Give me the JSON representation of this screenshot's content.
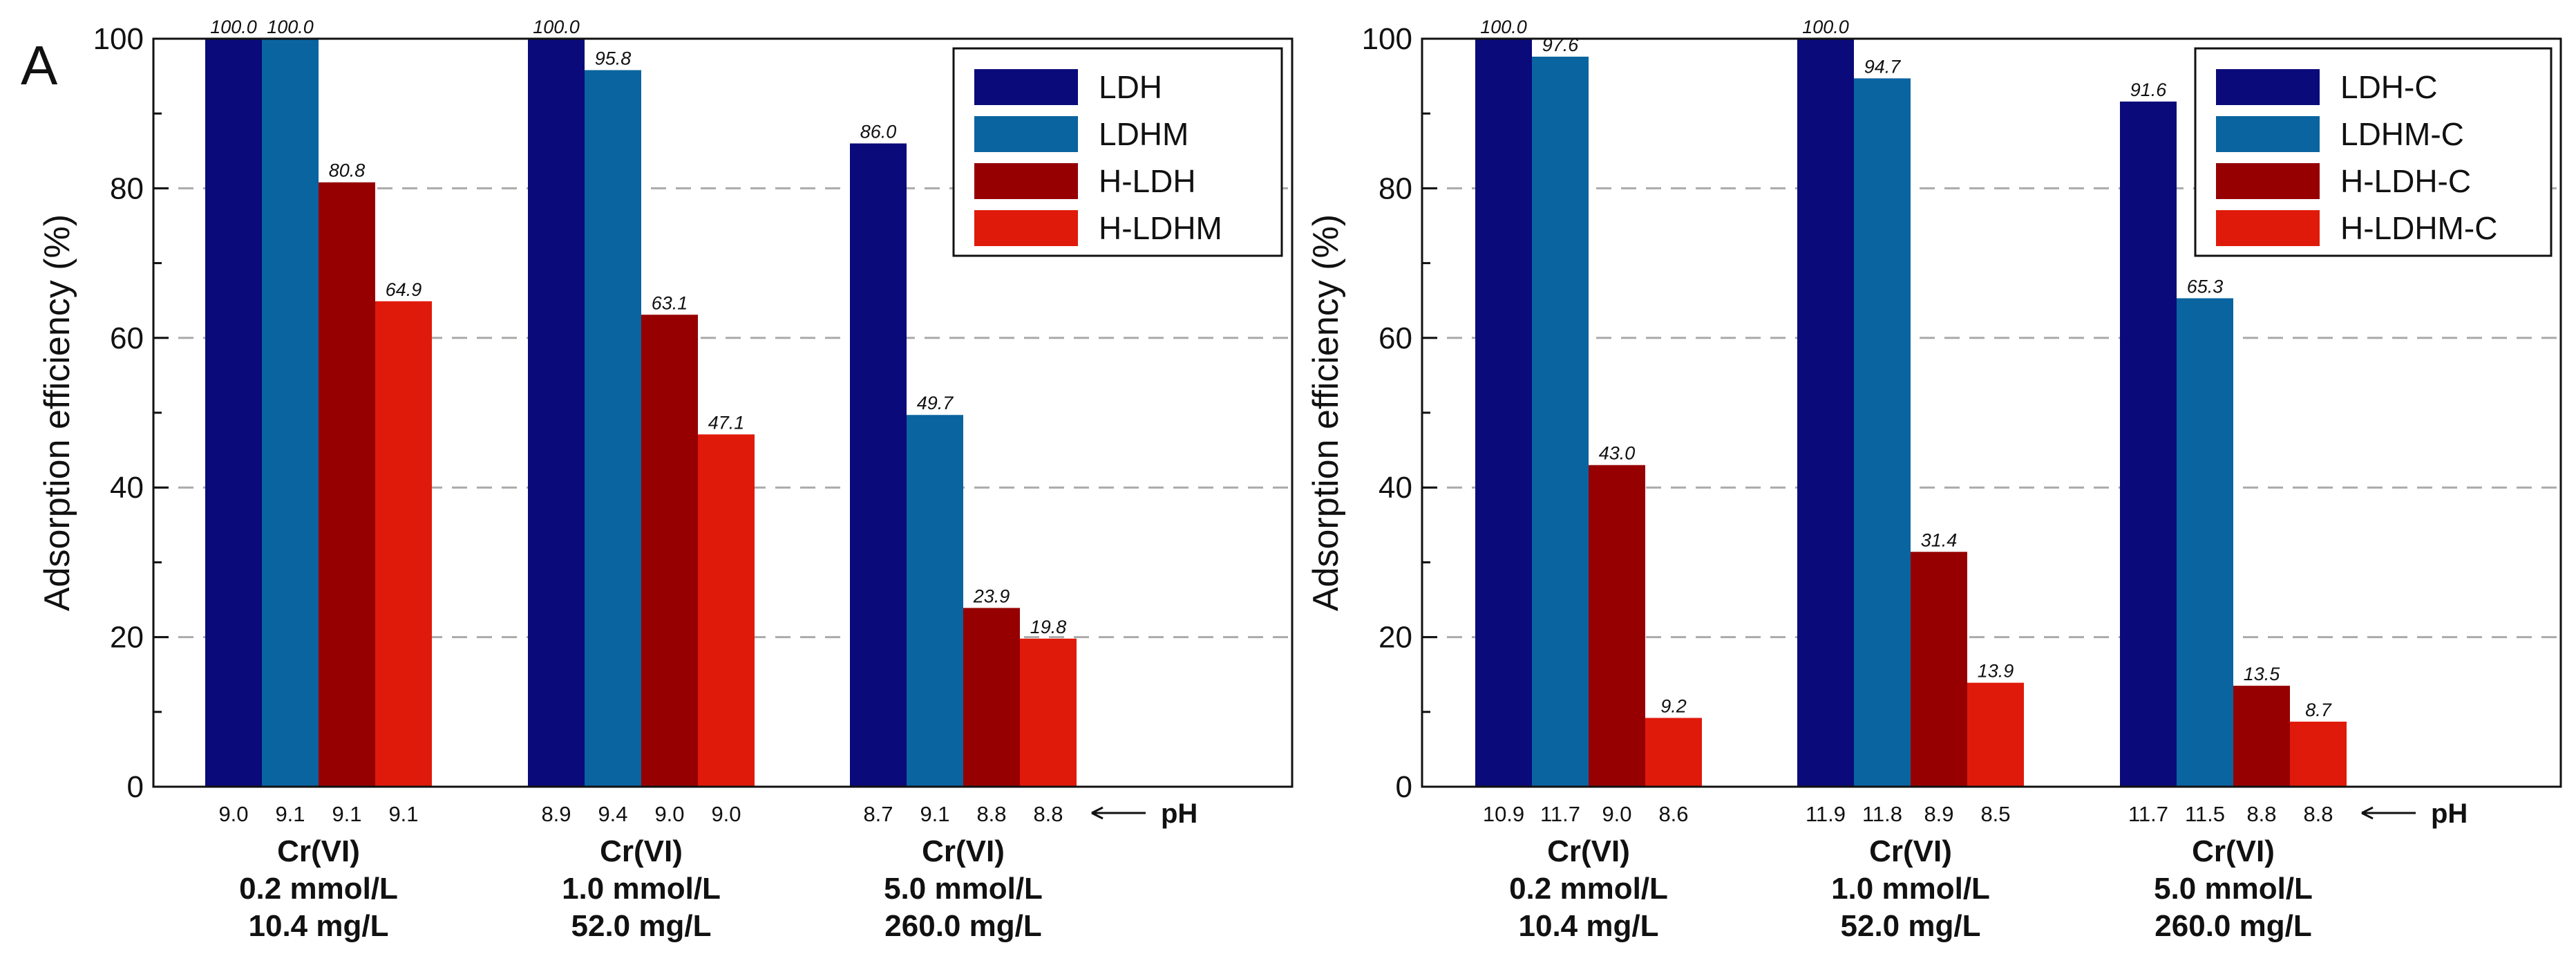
{
  "panel_letter": "A",
  "ph_marker": "pH",
  "chart_data": [
    {
      "type": "bar",
      "ylabel": "Adsorption efficiency (%)",
      "ylim": [
        0,
        100
      ],
      "yticks": [
        0,
        20,
        40,
        60,
        80,
        100
      ],
      "grid": "dashed horizontal",
      "legend_position": "top-right",
      "categories": [
        [
          "Cr(VI)",
          "0.2 mmol/L",
          "10.4 mg/L"
        ],
        [
          "Cr(VI)",
          "1.0 mmol/L",
          "52.0 mg/L"
        ],
        [
          "Cr(VI)",
          "5.0 mmol/L",
          "260.0 mg/L"
        ]
      ],
      "series": [
        {
          "name": "LDH",
          "color": "#0a0a7a",
          "values": [
            100.0,
            100.0,
            86.0
          ],
          "labels": [
            "100.0",
            "100.0",
            "86.0"
          ],
          "ph": [
            "9.0",
            "8.9",
            "8.7"
          ]
        },
        {
          "name": "LDHM",
          "color": "#0a64a0",
          "values": [
            100.0,
            95.8,
            49.7
          ],
          "labels": [
            "100.0",
            "95.8",
            "49.7"
          ],
          "ph": [
            "9.1",
            "9.4",
            "9.1"
          ]
        },
        {
          "name": "H-LDH",
          "color": "#960000",
          "values": [
            80.8,
            63.1,
            23.9
          ],
          "labels": [
            "80.8",
            "63.1",
            "23.9"
          ],
          "ph": [
            "9.1",
            "9.0",
            "8.8"
          ]
        },
        {
          "name": "H-LDHM",
          "color": "#e01a0a",
          "values": [
            64.9,
            47.1,
            19.8
          ],
          "labels": [
            "64.9",
            "47.1",
            "19.8"
          ],
          "ph": [
            "9.1",
            "9.0",
            "8.8"
          ]
        }
      ]
    },
    {
      "type": "bar",
      "ylabel": "Adsorption efficiency (%)",
      "ylim": [
        0,
        100
      ],
      "yticks": [
        0,
        20,
        40,
        60,
        80,
        100
      ],
      "grid": "dashed horizontal",
      "legend_position": "top-right",
      "categories": [
        [
          "Cr(VI)",
          "0.2 mmol/L",
          "10.4 mg/L"
        ],
        [
          "Cr(VI)",
          "1.0 mmol/L",
          "52.0 mg/L"
        ],
        [
          "Cr(VI)",
          "5.0 mmol/L",
          "260.0 mg/L"
        ]
      ],
      "series": [
        {
          "name": "LDH-C",
          "color": "#0a0a7a",
          "values": [
            100.0,
            100.0,
            91.6
          ],
          "labels": [
            "100.0",
            "100.0",
            "91.6"
          ],
          "ph": [
            "10.9",
            "11.9",
            "11.7"
          ]
        },
        {
          "name": "LDHM-C",
          "color": "#0a64a0",
          "values": [
            97.6,
            94.7,
            65.3
          ],
          "labels": [
            "97.6",
            "94.7",
            "65.3"
          ],
          "ph": [
            "11.7",
            "11.8",
            "11.5"
          ]
        },
        {
          "name": "H-LDH-C",
          "color": "#960000",
          "values": [
            43.0,
            31.4,
            13.5
          ],
          "labels": [
            "43.0",
            "31.4",
            "13.5"
          ],
          "ph": [
            "9.0",
            "8.9",
            "8.8"
          ]
        },
        {
          "name": "H-LDHM-C",
          "color": "#e01a0a",
          "values": [
            9.2,
            13.9,
            8.7
          ],
          "labels": [
            "9.2",
            "13.9",
            "8.7"
          ],
          "ph": [
            "8.6",
            "8.5",
            "8.8"
          ]
        }
      ]
    }
  ]
}
